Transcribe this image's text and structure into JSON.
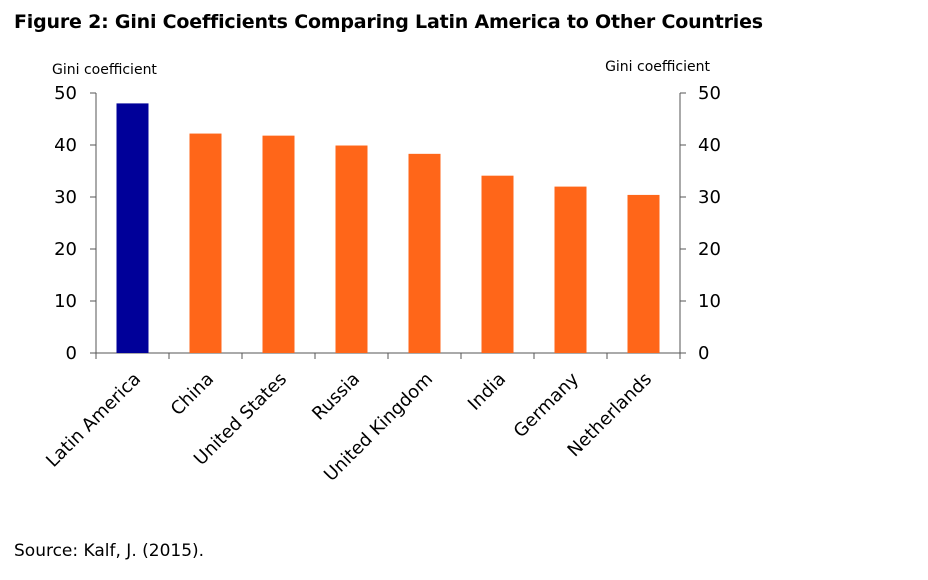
{
  "figure": {
    "title": "Figure 2: Gini Coefficients Comparing Latin America to Other Countries",
    "source": "Source: Kalf, J. (2015)."
  },
  "chart_data": {
    "type": "bar",
    "categories": [
      "Latin America",
      "China",
      "United States",
      "Russia",
      "United Kingdom",
      "India",
      "Germany",
      "Netherlands"
    ],
    "values": [
      48,
      42.2,
      41.8,
      39.9,
      38.3,
      34.1,
      32,
      30.4
    ],
    "colors": [
      "#000099",
      "#ff6619",
      "#ff6619",
      "#ff6619",
      "#ff6619",
      "#ff6619",
      "#ff6619",
      "#ff6619"
    ],
    "title": "",
    "ylabel_left": "Gini coefficient",
    "ylabel_right": "Gini coefficient",
    "ylim": [
      0,
      50
    ],
    "yticks": [
      0,
      10,
      20,
      30,
      40,
      50
    ],
    "grid": false,
    "legend": "none"
  }
}
